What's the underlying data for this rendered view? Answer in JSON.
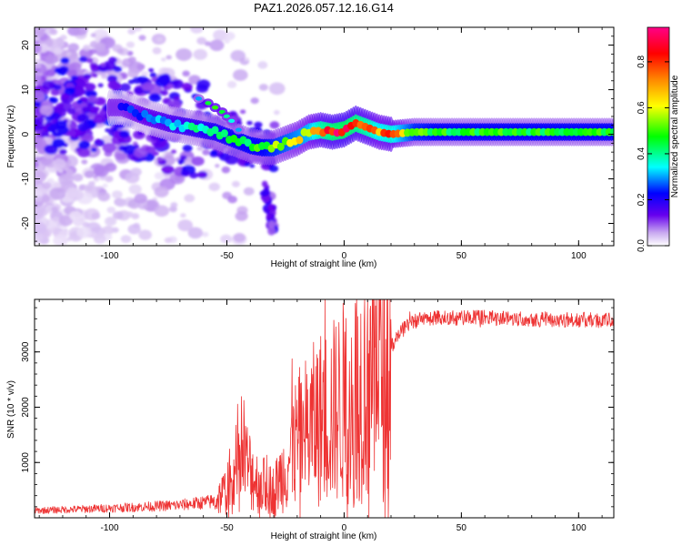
{
  "title": "PAZ1.2026.057.12.16.G14",
  "chart_data": [
    {
      "type": "heatmap",
      "name": "spectrogram",
      "xlabel": "Height of straight line (km)",
      "ylabel": "Frequency (Hz)",
      "xlim": [
        -132,
        115
      ],
      "ylim": [
        -25,
        24
      ],
      "xticks": [
        -100,
        -50,
        0,
        50,
        100
      ],
      "yticks": [
        -20,
        -10,
        0,
        10,
        20
      ],
      "colorbar": {
        "label": "Normalized spectral amplitude",
        "range": [
          0,
          0.95
        ],
        "ticks": [
          0.0,
          0.2,
          0.4,
          0.6,
          0.8
        ],
        "colors": [
          "#ffffff",
          "#c8a8f0",
          "#6600ee",
          "#0000ff",
          "#00ffff",
          "#00ff00",
          "#ffff00",
          "#ff8800",
          "#ff0000",
          "#ff0088"
        ]
      },
      "ridge": {
        "x": [
          -95,
          -85,
          -75,
          -65,
          -55,
          -45,
          -40,
          -35,
          -30,
          -25,
          -20,
          -15,
          -10,
          -5,
          0,
          5,
          10,
          15,
          20,
          30,
          40,
          60,
          80,
          100,
          115
        ],
        "y": [
          6,
          4,
          2.5,
          1.5,
          0.5,
          -1.5,
          -2.5,
          -3,
          -3,
          -2,
          -1,
          0.5,
          1,
          0.5,
          1,
          2.5,
          1.5,
          0.5,
          0,
          0.5,
          0.5,
          0.5,
          0.5,
          0.5,
          0.5
        ],
        "amplitude": [
          0.25,
          0.3,
          0.35,
          0.4,
          0.45,
          0.5,
          0.5,
          0.5,
          0.55,
          0.6,
          0.65,
          0.7,
          0.85,
          0.92,
          0.95,
          0.9,
          0.85,
          0.75,
          0.8,
          0.55,
          0.5,
          0.5,
          0.5,
          0.5,
          0.5
        ]
      },
      "upper_branch": {
        "x": [
          -62,
          -58,
          -55,
          -52,
          -50,
          -48,
          -45
        ],
        "y": [
          8,
          7,
          6,
          5,
          4,
          3,
          1
        ],
        "amplitude": [
          0.3,
          0.45,
          0.5,
          0.45,
          0.4,
          0.35,
          0.3
        ]
      },
      "lower_branch": {
        "x": [
          -34,
          -33,
          -32,
          -31,
          -30
        ],
        "y": [
          -12,
          -14,
          -16,
          -19,
          -21
        ],
        "amplitude": [
          0.3,
          0.3,
          0.3,
          0.25,
          0.2
        ]
      }
    },
    {
      "type": "line",
      "name": "snr",
      "xlabel": "Height of straight line (km)",
      "ylabel": "SNR (10 * v/v)",
      "xlim": [
        -132,
        115
      ],
      "ylim": [
        0,
        3950
      ],
      "xticks": [
        -100,
        -50,
        0,
        50,
        100
      ],
      "yticks": [
        1000,
        2000,
        3000
      ],
      "color": "#ee3333",
      "series": [
        {
          "name": "SNR",
          "x": [
            -132,
            -110,
            -90,
            -70,
            -55,
            -48,
            -45,
            -42,
            -38,
            -35,
            -30,
            -25,
            -20,
            -15,
            -10,
            -5,
            0,
            5,
            10,
            15,
            20,
            25,
            30,
            35,
            40,
            50,
            60,
            80,
            100,
            115
          ],
          "y": [
            130,
            160,
            190,
            230,
            300,
            600,
            900,
            1000,
            700,
            600,
            500,
            900,
            1400,
            1600,
            1800,
            1900,
            2100,
            2300,
            2500,
            2700,
            3100,
            3400,
            3550,
            3600,
            3620,
            3620,
            3620,
            3600,
            3580,
            3570
          ]
        }
      ]
    }
  ]
}
